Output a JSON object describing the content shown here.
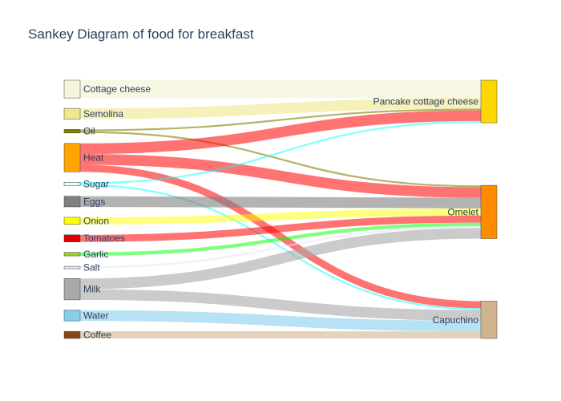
{
  "chart_data": {
    "type": "sankey",
    "title": "Sankey Diagram of food for breakfast",
    "nodes": [
      {
        "name": "Cottage cheese",
        "color": "#f5f5dc"
      },
      {
        "name": "Semolina",
        "color": "#f0e68c"
      },
      {
        "name": "Oil",
        "color": "#808000"
      },
      {
        "name": "Heat",
        "color": "#ffa500"
      },
      {
        "name": "Sugar",
        "color": "#e0ffff"
      },
      {
        "name": "Eggs",
        "color": "#808080"
      },
      {
        "name": "Onion",
        "color": "#ffff00"
      },
      {
        "name": "Tomatoes",
        "color": "#dd0000"
      },
      {
        "name": "Garlic",
        "color": "#9acd32"
      },
      {
        "name": "Salt",
        "color": "#e6e6fa"
      },
      {
        "name": "Milk",
        "color": "#a9a9a9"
      },
      {
        "name": "Water",
        "color": "#87ceeb"
      },
      {
        "name": "Coffee",
        "color": "#8b4513"
      },
      {
        "name": "Pancake cottage cheese",
        "color": "#ffd700"
      },
      {
        "name": "Omelet",
        "color": "#ff8c00"
      },
      {
        "name": "Capuchino",
        "color": "#d2b48c"
      }
    ],
    "links": [
      {
        "source": 0,
        "target": 13,
        "value": 5,
        "color": "rgba(245,245,220,0.8)"
      },
      {
        "source": 1,
        "target": 13,
        "value": 3,
        "color": "rgba(240,230,140,0.6)"
      },
      {
        "source": 2,
        "target": 13,
        "value": 0.5,
        "color": "rgba(128,128,0,0.6)"
      },
      {
        "source": 2,
        "target": 14,
        "value": 0.5,
        "color": "rgba(128,128,0,0.6)"
      },
      {
        "source": 3,
        "target": 13,
        "value": 3,
        "color": "rgba(255,0,0,0.55)"
      },
      {
        "source": 3,
        "target": 14,
        "value": 3,
        "color": "rgba(255,0,0,0.55)"
      },
      {
        "source": 3,
        "target": 15,
        "value": 2,
        "color": "rgba(255,0,0,0.55)"
      },
      {
        "source": 4,
        "target": 13,
        "value": 0.5,
        "color": "rgba(0,255,255,0.5)"
      },
      {
        "source": 4,
        "target": 15,
        "value": 0.5,
        "color": "rgba(0,255,255,0.5)"
      },
      {
        "source": 5,
        "target": 14,
        "value": 3,
        "color": "rgba(128,128,128,0.6)"
      },
      {
        "source": 6,
        "target": 14,
        "value": 2,
        "color": "rgba(255,255,0,0.5)"
      },
      {
        "source": 7,
        "target": 14,
        "value": 2,
        "color": "rgba(255,0,0,0.55)"
      },
      {
        "source": 8,
        "target": 14,
        "value": 1,
        "color": "rgba(0,255,0,0.5)"
      },
      {
        "source": 9,
        "target": 14,
        "value": 0.5,
        "color": "rgba(230,230,250,0.6)"
      },
      {
        "source": 10,
        "target": 14,
        "value": 3,
        "color": "rgba(169,169,169,0.6)"
      },
      {
        "source": 10,
        "target": 15,
        "value": 3,
        "color": "rgba(169,169,169,0.6)"
      },
      {
        "source": 11,
        "target": 15,
        "value": 3,
        "color": "rgba(135,206,235,0.6)"
      },
      {
        "source": 12,
        "target": 15,
        "value": 2,
        "color": "rgba(210,180,140,0.6)"
      }
    ]
  }
}
